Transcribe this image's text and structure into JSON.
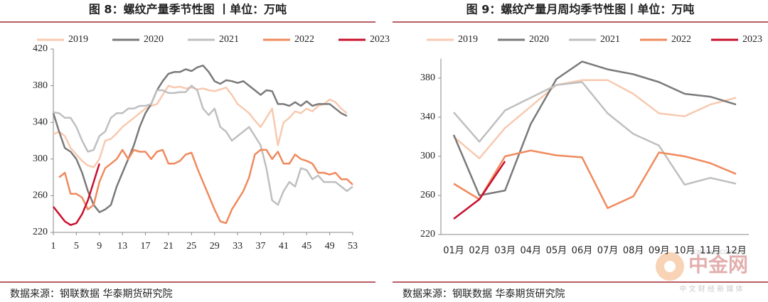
{
  "chart_data": [
    {
      "type": "line",
      "title": "图 8：螺纹产量季节性图 丨单位：万吨",
      "source": "数据来源：钢联数据 华泰期货研究院",
      "x": [
        1,
        2,
        3,
        4,
        5,
        6,
        7,
        8,
        9,
        10,
        11,
        12,
        13,
        14,
        15,
        16,
        17,
        18,
        19,
        20,
        21,
        22,
        23,
        24,
        25,
        26,
        27,
        28,
        29,
        30,
        31,
        32,
        33,
        34,
        35,
        36,
        37,
        38,
        39,
        40,
        41,
        42,
        43,
        44,
        45,
        46,
        47,
        48,
        49,
        50,
        51,
        52,
        53
      ],
      "xlim": [
        1,
        53
      ],
      "xticks": [
        1,
        5,
        9,
        13,
        17,
        21,
        25,
        29,
        33,
        37,
        41,
        45,
        49,
        53
      ],
      "ylim": [
        220,
        420
      ],
      "yticks": [
        220,
        260,
        300,
        340,
        380,
        420
      ],
      "legend": "top",
      "series": [
        {
          "name": "2019",
          "color": "#f8c9b0",
          "values": [
            327,
            330,
            325,
            312,
            305,
            298,
            293,
            291,
            300,
            320,
            322,
            328,
            335,
            340,
            345,
            350,
            355,
            358,
            360,
            370,
            380,
            378,
            379,
            377,
            378,
            376,
            377,
            375,
            374,
            376,
            378,
            370,
            360,
            355,
            350,
            342,
            335,
            345,
            355,
            315,
            340,
            345,
            352,
            350,
            355,
            352,
            358,
            360,
            365,
            362,
            355,
            350,
            null
          ]
        },
        {
          "name": "2020",
          "color": "#7a7a7a",
          "values": [
            350,
            330,
            312,
            308,
            300,
            285,
            265,
            250,
            242,
            245,
            250,
            270,
            285,
            300,
            315,
            335,
            350,
            360,
            375,
            385,
            393,
            395,
            395,
            398,
            396,
            400,
            402,
            395,
            385,
            382,
            386,
            385,
            383,
            385,
            380,
            375,
            370,
            375,
            374,
            360,
            360,
            358,
            362,
            358,
            363,
            358,
            360,
            360,
            360,
            355,
            350,
            347,
            null
          ]
        },
        {
          "name": "2021",
          "color": "#bfbfbf",
          "values": [
            351,
            350,
            345,
            345,
            335,
            320,
            308,
            310,
            325,
            330,
            345,
            350,
            350,
            355,
            355,
            358,
            358,
            360,
            375,
            375,
            372,
            372,
            373,
            373,
            380,
            375,
            355,
            348,
            355,
            335,
            330,
            320,
            325,
            330,
            335,
            325,
            315,
            290,
            255,
            250,
            265,
            275,
            270,
            290,
            288,
            278,
            282,
            275,
            275,
            275,
            270,
            265,
            270
          ]
        },
        {
          "name": "2022",
          "color": "#f08a5d",
          "values": [
            null,
            280,
            285,
            262,
            262,
            258,
            245,
            250,
            275,
            290,
            295,
            300,
            310,
            300,
            310,
            308,
            308,
            300,
            308,
            310,
            295,
            295,
            298,
            305,
            307,
            290,
            275,
            260,
            245,
            232,
            230,
            245,
            255,
            265,
            280,
            305,
            310,
            310,
            300,
            308,
            295,
            295,
            305,
            300,
            298,
            295,
            285,
            285,
            283,
            285,
            278,
            278,
            272
          ]
        },
        {
          "name": "2023",
          "color": "#c8102e",
          "values": [
            248,
            240,
            232,
            228,
            230,
            240,
            255,
            275,
            295,
            null,
            null,
            null,
            null,
            null,
            null,
            null,
            null,
            null,
            null,
            null,
            null,
            null,
            null,
            null,
            null,
            null,
            null,
            null,
            null,
            null,
            null,
            null,
            null,
            null,
            null,
            null,
            null,
            null,
            null,
            null,
            null,
            null,
            null,
            null,
            null,
            null,
            null,
            null,
            null,
            null,
            null,
            null,
            null
          ]
        }
      ]
    },
    {
      "type": "line",
      "title": "图 9：螺纹产量月周均季节性图丨单位：万吨",
      "source": "数据来源：钢联数据 华泰期货研究院",
      "categories": [
        "01月",
        "02月",
        "03月",
        "04月",
        "05月",
        "06月",
        "07月",
        "08月",
        "09月",
        "10月",
        "11月",
        "12月"
      ],
      "ylim": [
        220,
        400
      ],
      "yticks": [
        220,
        260,
        300,
        340,
        380
      ],
      "legend": "top",
      "series": [
        {
          "name": "2019",
          "color": "#f8c9b0",
          "values": [
            320,
            298,
            329,
            351,
            373,
            378,
            378,
            364,
            344,
            341,
            353,
            360
          ]
        },
        {
          "name": "2020",
          "color": "#7a7a7a",
          "values": [
            322,
            260,
            265,
            333,
            379,
            397,
            389,
            384,
            376,
            364,
            361,
            353
          ]
        },
        {
          "name": "2021",
          "color": "#bfbfbf",
          "values": [
            345,
            315,
            347,
            360,
            373,
            376,
            344,
            323,
            311,
            271,
            278,
            272
          ]
        },
        {
          "name": "2022",
          "color": "#f08a5d",
          "values": [
            272,
            256,
            300,
            306,
            301,
            299,
            247,
            259,
            304,
            300,
            293,
            282
          ]
        },
        {
          "name": "2023",
          "color": "#c8102e",
          "values": [
            236,
            256,
            295,
            null,
            null,
            null,
            null,
            null,
            null,
            null,
            null,
            null
          ]
        }
      ]
    }
  ],
  "watermark": {
    "name": "中金网",
    "url": "CNGOLD.COM.CN",
    "tagline": "中 文 财 经 新 媒 体"
  }
}
